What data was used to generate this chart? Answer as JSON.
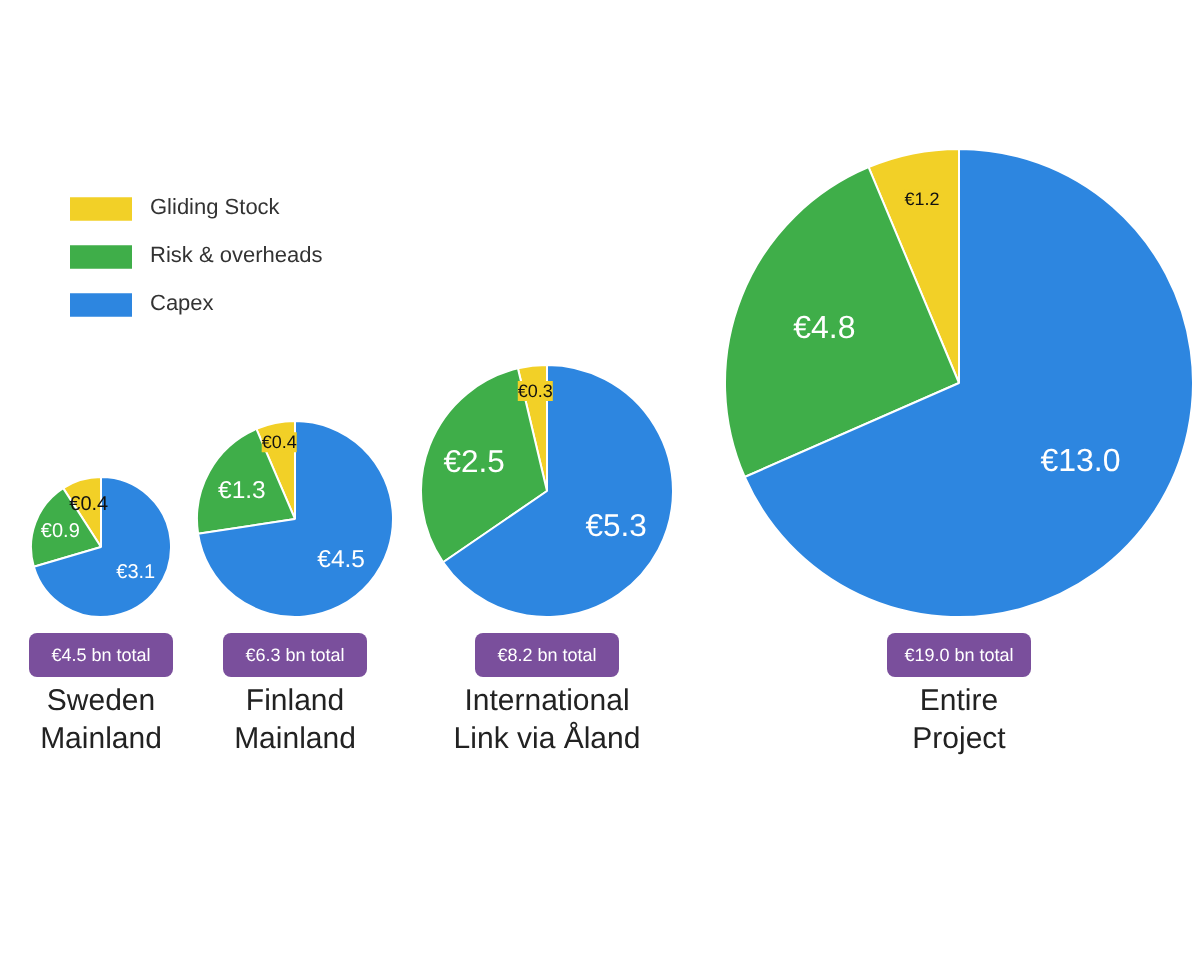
{
  "chart_data": [
    {
      "type": "pie",
      "title": "Sweden\nMainland",
      "categories": [
        "Gliding Stock",
        "Risk & overheads",
        "Capex"
      ],
      "values": [
        0.4,
        0.9,
        3.1
      ],
      "colors": [
        "#f2d027",
        "#3fae49",
        "#2d86e0"
      ],
      "value_labels": [
        "€0.4",
        "€0.9",
        "€3.1"
      ],
      "annotations": [
        "€4.5 bn total"
      ],
      "legend": "top right"
    },
    {
      "type": "pie",
      "title": "Finland\nMainland",
      "values": [
        0.4,
        1.3,
        4.5
      ],
      "colors": [
        "#f2d027",
        "#3fae49",
        "#2d86e0"
      ],
      "value_labels": [
        "€0.4",
        "€1.3",
        "€4.5"
      ],
      "annotations": [
        "€6.3 bn total"
      ]
    },
    {
      "type": "pie",
      "title": "International\nLink via Åland",
      "values": [
        0.3,
        2.5,
        5.3
      ],
      "colors": [
        "#f2d027",
        "#3fae49",
        "#2d86e0"
      ],
      "value_labels": [
        "€0.3",
        "€2.5",
        "€5.3"
      ],
      "annotations": [
        "€8.2 bn total"
      ]
    },
    {
      "type": "pie",
      "title": "Entire\nProject",
      "values": [
        1.2,
        4.8,
        13.0
      ],
      "colors": [
        "#f2d027",
        "#3fae49",
        "#2d86e0"
      ],
      "value_labels": [
        "€1.2",
        "€4.8",
        "€13.0"
      ],
      "annotations": [
        "€19.0 bn total"
      ]
    }
  ]
}
